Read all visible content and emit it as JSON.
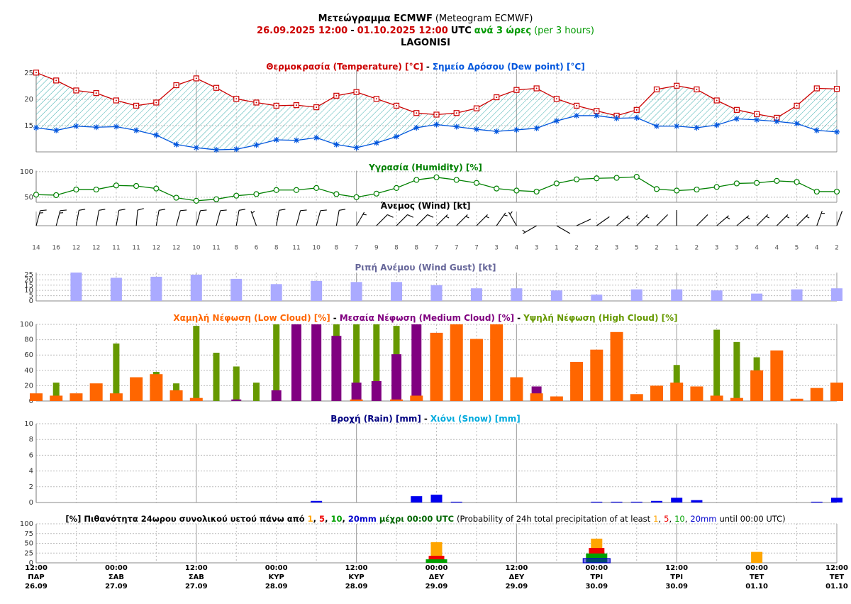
{
  "header": {
    "title": "Μετεώγραμμα ECMWF",
    "title_en": "(Meteogram ECMWF)",
    "start": "26.09.2025 12:00",
    "dash": "-",
    "end": "01.10.2025 12:00",
    "tz": "UTC",
    "interval": "ανά 3 ώρες",
    "interval_en": "(per 3 hours)",
    "location": "LAGONISI"
  },
  "x_axis": {
    "categories": [
      {
        "time": "12:00",
        "day": "ΠΑΡ",
        "date": "26.09"
      },
      null,
      null,
      null,
      {
        "time": "00:00",
        "day": "ΣΑΒ",
        "date": "27.09"
      },
      null,
      null,
      null,
      {
        "time": "12:00",
        "day": "ΣΑΒ",
        "date": "27.09"
      },
      null,
      null,
      null,
      {
        "time": "00:00",
        "day": "ΚΥΡ",
        "date": "28.09"
      },
      null,
      null,
      null,
      {
        "time": "12:00",
        "day": "ΚΥΡ",
        "date": "28.09"
      },
      null,
      null,
      null,
      {
        "time": "00:00",
        "day": "ΔΕΥ",
        "date": "29.09"
      },
      null,
      null,
      null,
      {
        "time": "12:00",
        "day": "ΔΕΥ",
        "date": "29.09"
      },
      null,
      null,
      null,
      {
        "time": "00:00",
        "day": "ΤΡΙ",
        "date": "30.09"
      },
      null,
      null,
      null,
      {
        "time": "12:00",
        "day": "ΤΡΙ",
        "date": "30.09"
      },
      null,
      null,
      null,
      {
        "time": "00:00",
        "day": "ΤΕΤ",
        "date": "01.10"
      },
      null,
      null,
      null,
      {
        "time": "12:00",
        "day": "ΤΕΤ",
        "date": "01.10"
      }
    ]
  },
  "chart_data": [
    {
      "type": "line",
      "separator": "-",
      "fill_between": true,
      "ylim": [
        10,
        25.6
      ],
      "yticks": [
        15,
        20,
        25
      ],
      "series": [
        {
          "name": "Θερμοκρασία (Temperature) [°C]",
          "color": "#cc0000",
          "marker": "square",
          "values": [
            25.1,
            23.6,
            21.7,
            21.2,
            19.8,
            18.8,
            19.4,
            22.7,
            24.0,
            22.2,
            20.1,
            19.4,
            18.8,
            18.9,
            18.5,
            20.7,
            21.4,
            20.1,
            18.8,
            17.4,
            17.1,
            17.4,
            18.3,
            20.4,
            21.8,
            22.1,
            20.1,
            18.8,
            17.8,
            16.9,
            18.0,
            21.9,
            22.6,
            21.9,
            19.8,
            18.0,
            17.2,
            16.5,
            18.8,
            22.1,
            22.0
          ]
        },
        {
          "name": "Σημείο Δρόσου (Dew point) [°C]",
          "color": "#0055dd",
          "marker": "star",
          "values": [
            14.6,
            14.1,
            14.9,
            14.7,
            14.8,
            14.1,
            13.2,
            11.4,
            10.8,
            10.4,
            10.5,
            11.3,
            12.3,
            12.2,
            12.7,
            11.4,
            10.8,
            11.7,
            12.9,
            14.6,
            15.2,
            14.8,
            14.3,
            13.9,
            14.2,
            14.5,
            15.9,
            16.9,
            16.9,
            16.4,
            16.5,
            14.9,
            14.9,
            14.6,
            15.1,
            16.3,
            16.1,
            15.8,
            15.4,
            14.1,
            13.8
          ]
        }
      ]
    },
    {
      "type": "line",
      "ylim": [
        40,
        102
      ],
      "yticks": [
        50,
        100
      ],
      "series": [
        {
          "name": "Υγρασία (Humidity) [%]",
          "color": "#008000",
          "marker": "circle",
          "values": [
            55,
            54,
            65,
            65,
            73,
            72,
            67,
            49,
            43,
            46,
            53,
            56,
            64,
            64,
            68,
            56,
            50,
            57,
            68,
            84,
            89,
            84,
            78,
            67,
            63,
            61,
            77,
            85,
            87,
            88,
            90,
            66,
            63,
            65,
            70,
            77,
            78,
            82,
            80,
            61,
            61
          ]
        }
      ]
    },
    {
      "type": "barbs",
      "title": "Άνεμος (Wind) [kt]",
      "color": "#000000",
      "values": [
        14,
        16,
        12,
        12,
        11,
        11,
        12,
        12,
        10,
        11,
        8,
        6,
        8,
        11,
        10,
        8,
        7,
        9,
        8,
        8,
        7,
        7,
        7,
        3,
        4,
        3,
        1,
        2,
        2,
        3,
        5,
        2,
        1,
        2,
        3,
        3,
        4,
        4,
        5,
        4,
        2
      ],
      "directions": [
        15,
        15,
        10,
        10,
        10,
        5,
        10,
        15,
        15,
        15,
        10,
        340,
        10,
        15,
        15,
        10,
        30,
        45,
        45,
        45,
        45,
        45,
        45,
        35,
        330,
        240,
        120,
        65,
        55,
        50,
        45,
        45,
        0,
        45,
        50,
        50,
        45,
        45,
        45,
        20,
        20
      ]
    },
    {
      "type": "bar",
      "title": "Ριπή Ανέμου (Wind Gust) [kt]",
      "title_color": "#666699",
      "color": "#aaaaff",
      "ylim": [
        0,
        27
      ],
      "yticks": [
        0,
        5,
        10,
        15,
        20,
        25
      ],
      "values": [
        null,
        null,
        27,
        null,
        22,
        null,
        23,
        null,
        25,
        null,
        21,
        null,
        16,
        null,
        19,
        null,
        18,
        null,
        18,
        null,
        15,
        null,
        12,
        null,
        12,
        null,
        10,
        null,
        6,
        null,
        11,
        null,
        11,
        null,
        10,
        null,
        7,
        null,
        11,
        null,
        12
      ]
    },
    {
      "type": "bar",
      "separator": "-",
      "ylim": [
        0,
        100
      ],
      "yticks": [
        0,
        20,
        40,
        60,
        80,
        100
      ],
      "series": [
        {
          "name": "Χαμηλή Νέφωση (Low Cloud) [%]",
          "color": "#ff6600",
          "values": [
            10,
            7,
            10,
            23,
            10,
            31,
            35,
            14,
            4,
            0,
            0,
            0,
            0,
            0,
            0,
            0,
            2,
            0,
            2,
            7,
            89,
            100,
            81,
            100,
            31,
            10,
            6,
            51,
            67,
            90,
            9,
            20,
            24,
            19,
            7,
            4,
            40,
            66,
            3,
            17,
            24
          ]
        },
        {
          "name": "Μεσαία Νέφωση (Medium Cloud) [%]",
          "color": "#800080",
          "values": [
            0,
            0,
            0,
            0,
            0,
            0,
            0,
            0,
            0,
            0,
            2,
            0,
            14,
            100,
            100,
            85,
            24,
            26,
            61,
            100,
            0,
            0,
            0,
            0,
            0,
            19,
            0,
            0,
            0,
            0,
            0,
            0,
            0,
            0,
            0,
            0,
            0,
            0,
            0,
            0,
            0
          ]
        },
        {
          "name": "Υψηλή Νέφωση (High Cloud) [%]",
          "color": "#669900",
          "values": [
            0,
            24,
            0,
            0,
            75,
            0,
            38,
            23,
            98,
            63,
            45,
            24,
            100,
            0,
            0,
            100,
            100,
            100,
            98,
            0,
            0,
            0,
            0,
            0,
            0,
            0,
            0,
            0,
            0,
            0,
            0,
            0,
            47,
            0,
            93,
            77,
            57,
            0,
            0,
            0,
            0
          ]
        }
      ]
    },
    {
      "type": "bar",
      "separator": "-",
      "ylim": [
        0,
        10
      ],
      "yticks": [
        0,
        2,
        4,
        6,
        8,
        10
      ],
      "series": [
        {
          "name": "Βροχή (Rain) [mm]",
          "color": "#000080",
          "bar_color": "#0000ee",
          "values": [
            0,
            0,
            0,
            0,
            0,
            0,
            0,
            0,
            0,
            0,
            0,
            0,
            0,
            0,
            0.2,
            0,
            0,
            0,
            0,
            0.8,
            1.0,
            0.1,
            0,
            0,
            0,
            0,
            0,
            0,
            0.1,
            0.1,
            0.1,
            0.2,
            0.6,
            0.3,
            0,
            0,
            0,
            0,
            0,
            0.1,
            0.6
          ]
        },
        {
          "name": "Χιόνι (Snow) [mm]",
          "color": "#00aadd",
          "bar_color": "#00aadd",
          "values": [
            0,
            0,
            0,
            0,
            0,
            0,
            0,
            0,
            0,
            0,
            0,
            0,
            0,
            0,
            0,
            0,
            0,
            0,
            0,
            0,
            0,
            0,
            0,
            0,
            0,
            0,
            0,
            0,
            0,
            0,
            0,
            0,
            0,
            0,
            0,
            0,
            0,
            0,
            0,
            0,
            0
          ]
        }
      ]
    },
    {
      "type": "bar",
      "title": "[%] Πιθανότητα 24ωρου συνολικού υετού πάνω από",
      "title_mid": "μέχρι 00:00 UTC",
      "title_en": "(Probability of 24h total precipitation of at least",
      "title_en_end": "until 00:00 UTC)",
      "list_separator": ",",
      "ylim": [
        0,
        100
      ],
      "yticks": [
        0,
        25,
        50,
        75,
        100
      ],
      "series": [
        {
          "name": "1",
          "color": "#ffa500",
          "values": [
            null,
            null,
            null,
            null,
            0,
            null,
            null,
            null,
            null,
            null,
            null,
            null,
            0,
            null,
            null,
            null,
            null,
            null,
            null,
            null,
            53,
            null,
            null,
            null,
            null,
            null,
            null,
            null,
            62,
            null,
            null,
            null,
            null,
            null,
            null,
            null,
            28,
            null,
            null,
            null,
            null
          ]
        },
        {
          "name": "5",
          "color": "#ee0000",
          "values": [
            null,
            null,
            null,
            null,
            0,
            null,
            null,
            null,
            null,
            null,
            null,
            null,
            0,
            null,
            null,
            null,
            null,
            null,
            null,
            null,
            18,
            null,
            null,
            null,
            null,
            null,
            null,
            null,
            38,
            null,
            null,
            null,
            null,
            null,
            null,
            null,
            0,
            null,
            null,
            null,
            null
          ]
        },
        {
          "name": "10",
          "color": "#00a000",
          "values": [
            null,
            null,
            null,
            null,
            0,
            null,
            null,
            null,
            null,
            null,
            null,
            null,
            0,
            null,
            null,
            null,
            null,
            null,
            null,
            null,
            9,
            null,
            null,
            null,
            null,
            null,
            null,
            null,
            24,
            null,
            null,
            null,
            null,
            null,
            null,
            null,
            0,
            null,
            null,
            null,
            null
          ]
        },
        {
          "name": "20mm",
          "color": "#0000cc",
          "values": [
            null,
            null,
            null,
            null,
            0,
            null,
            null,
            null,
            null,
            null,
            null,
            null,
            0,
            null,
            null,
            null,
            null,
            null,
            null,
            null,
            0,
            null,
            null,
            null,
            null,
            null,
            null,
            null,
            11,
            null,
            null,
            null,
            null,
            null,
            null,
            null,
            0,
            null,
            null,
            null,
            null
          ]
        }
      ]
    }
  ]
}
